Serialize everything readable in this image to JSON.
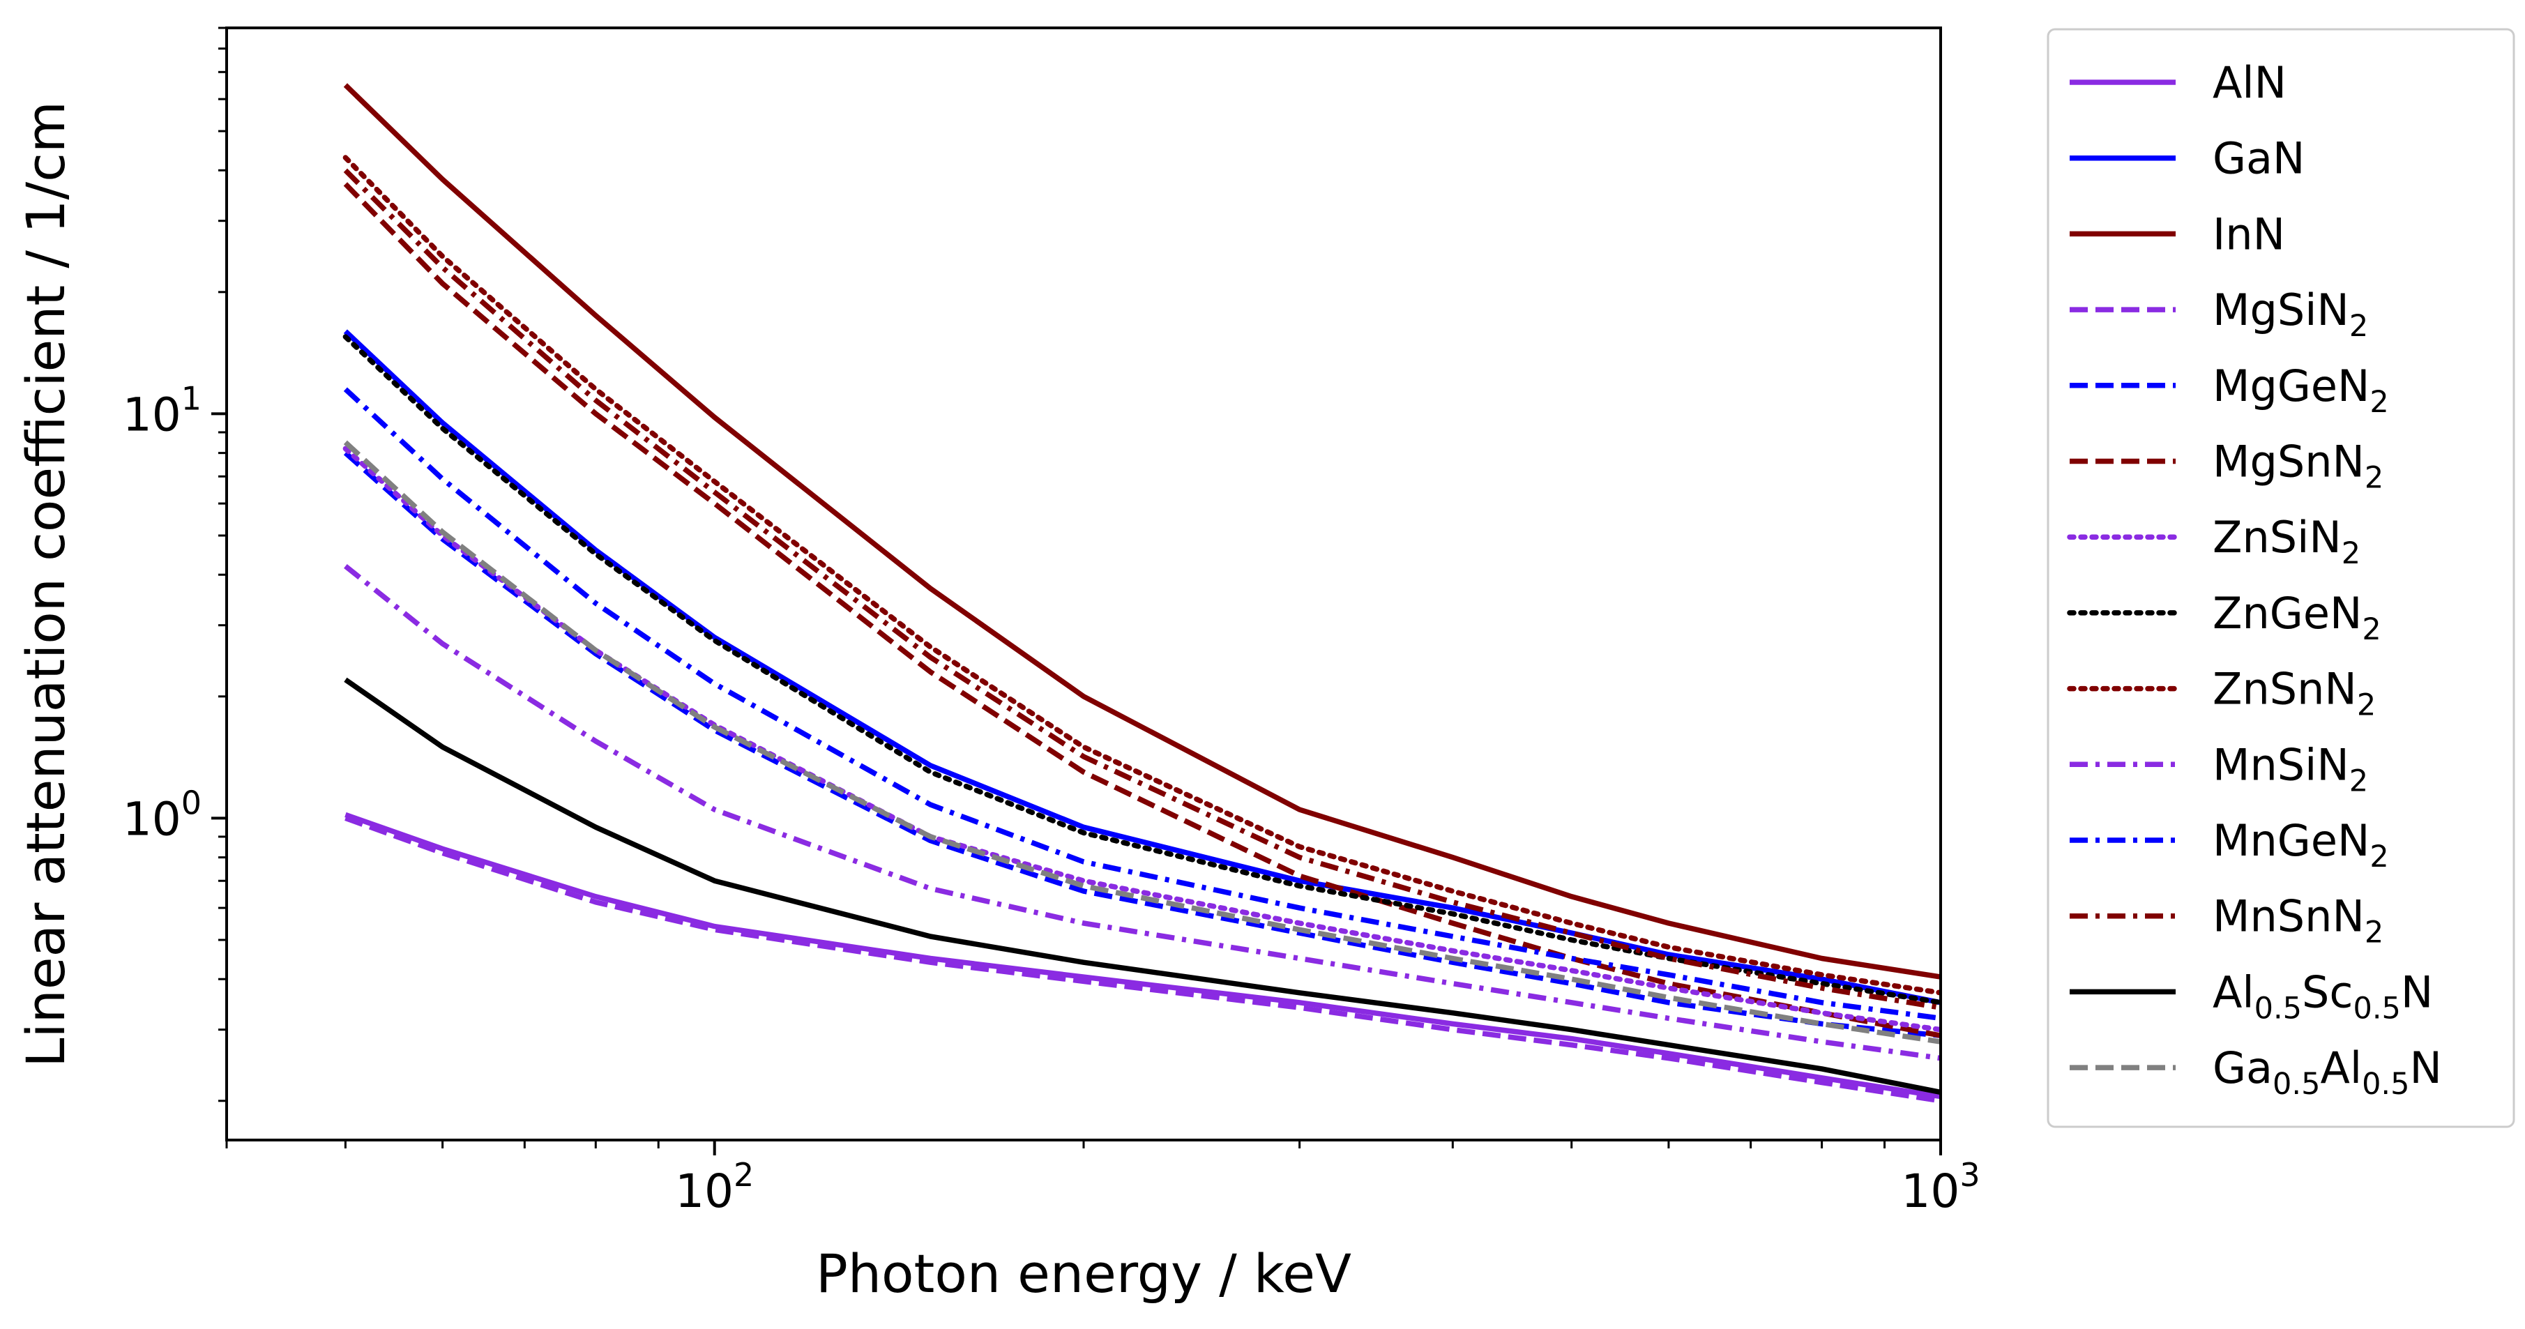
{
  "chart_data": {
    "type": "line",
    "xscale": "log",
    "yscale": "log",
    "xlim": [
      40,
      1000
    ],
    "ylim": [
      0.16,
      90
    ],
    "xlabel": "Photon energy / keV",
    "ylabel": "Linear attenuation coefficient / 1/cm",
    "x_ticks": [
      {
        "value": 100,
        "base": "10",
        "exp": "2"
      },
      {
        "value": 1000,
        "base": "10",
        "exp": "3"
      }
    ],
    "y_ticks": [
      {
        "value": 1,
        "base": "10",
        "exp": "0"
      },
      {
        "value": 10,
        "base": "10",
        "exp": "1"
      }
    ],
    "legend_position": "outside-right",
    "x": [
      50,
      60,
      80,
      100,
      150,
      200,
      300,
      400,
      500,
      600,
      800,
      1000
    ],
    "series": [
      {
        "name": "AlN",
        "parts": [
          {
            "t": "AlN"
          }
        ],
        "color": "#8a2be2",
        "style": "solid",
        "values": [
          1.02,
          0.84,
          0.64,
          0.54,
          0.45,
          0.405,
          0.35,
          0.31,
          0.285,
          0.262,
          0.228,
          0.205
        ]
      },
      {
        "name": "GaN",
        "parts": [
          {
            "t": "GaN"
          }
        ],
        "color": "#0000ff",
        "style": "solid",
        "values": [
          16.0,
          9.5,
          4.6,
          2.8,
          1.35,
          0.95,
          0.7,
          0.6,
          0.52,
          0.46,
          0.4,
          0.35
        ]
      },
      {
        "name": "InN",
        "parts": [
          {
            "t": "InN"
          }
        ],
        "color": "#800000",
        "style": "solid",
        "values": [
          65,
          38,
          17.5,
          9.8,
          3.7,
          2.0,
          1.05,
          0.8,
          0.64,
          0.55,
          0.45,
          0.405
        ]
      },
      {
        "name": "MgSiN2",
        "parts": [
          {
            "t": "MgSiN"
          },
          {
            "t": "2",
            "sub": true
          }
        ],
        "color": "#8a2be2",
        "style": "dashed",
        "values": [
          1.0,
          0.82,
          0.62,
          0.53,
          0.44,
          0.395,
          0.34,
          0.3,
          0.275,
          0.255,
          0.222,
          0.2
        ]
      },
      {
        "name": "MgGeN2",
        "parts": [
          {
            "t": "MgGeN"
          },
          {
            "t": "2",
            "sub": true
          }
        ],
        "color": "#0000ff",
        "style": "dashed",
        "values": [
          8.0,
          4.9,
          2.55,
          1.65,
          0.88,
          0.66,
          0.52,
          0.44,
          0.39,
          0.35,
          0.31,
          0.29
        ]
      },
      {
        "name": "MgSnN2",
        "parts": [
          {
            "t": "MgSnN"
          },
          {
            "t": "2",
            "sub": true
          }
        ],
        "color": "#800000",
        "style": "dashed",
        "values": [
          37,
          21,
          10,
          6.0,
          2.3,
          1.3,
          0.72,
          0.55,
          0.45,
          0.39,
          0.33,
          0.29
        ]
      },
      {
        "name": "ZnSiN2",
        "parts": [
          {
            "t": "ZnSiN"
          },
          {
            "t": "2",
            "sub": true
          }
        ],
        "color": "#8a2be2",
        "style": "dotted",
        "values": [
          8.2,
          5.0,
          2.6,
          1.7,
          0.9,
          0.7,
          0.55,
          0.47,
          0.42,
          0.38,
          0.33,
          0.3
        ]
      },
      {
        "name": "ZnGeN2",
        "parts": [
          {
            "t": "ZnGeN"
          },
          {
            "t": "2",
            "sub": true
          }
        ],
        "color": "#000000",
        "style": "dotted",
        "values": [
          15.5,
          9.2,
          4.5,
          2.75,
          1.3,
          0.92,
          0.68,
          0.58,
          0.5,
          0.45,
          0.39,
          0.35
        ]
      },
      {
        "name": "ZnSnN2",
        "parts": [
          {
            "t": "ZnSnN"
          },
          {
            "t": "2",
            "sub": true
          }
        ],
        "color": "#800000",
        "style": "dotted",
        "values": [
          43,
          24.5,
          11.5,
          6.8,
          2.65,
          1.5,
          0.85,
          0.66,
          0.55,
          0.48,
          0.41,
          0.37
        ]
      },
      {
        "name": "MnSiN2",
        "parts": [
          {
            "t": "MnSiN"
          },
          {
            "t": "2",
            "sub": true
          }
        ],
        "color": "#8a2be2",
        "style": "dashdot",
        "values": [
          4.2,
          2.7,
          1.55,
          1.05,
          0.67,
          0.55,
          0.45,
          0.39,
          0.35,
          0.32,
          0.28,
          0.255
        ]
      },
      {
        "name": "MnGeN2",
        "parts": [
          {
            "t": "MnGeN"
          },
          {
            "t": "2",
            "sub": true
          }
        ],
        "color": "#0000ff",
        "style": "dashdot",
        "values": [
          11.5,
          6.9,
          3.4,
          2.15,
          1.08,
          0.78,
          0.6,
          0.51,
          0.45,
          0.41,
          0.35,
          0.32
        ]
      },
      {
        "name": "MnSnN2",
        "parts": [
          {
            "t": "MnSnN"
          },
          {
            "t": "2",
            "sub": true
          }
        ],
        "color": "#800000",
        "style": "dashdot",
        "values": [
          40,
          23,
          10.8,
          6.4,
          2.5,
          1.42,
          0.8,
          0.62,
          0.52,
          0.45,
          0.38,
          0.34
        ]
      },
      {
        "name": "Al0.5Sc0.5N",
        "parts": [
          {
            "t": "Al"
          },
          {
            "t": "0.5",
            "sub": true
          },
          {
            "t": "Sc"
          },
          {
            "t": "0.5",
            "sub": true
          },
          {
            "t": "N"
          }
        ],
        "color": "#000000",
        "style": "solid",
        "values": [
          2.2,
          1.5,
          0.95,
          0.7,
          0.51,
          0.44,
          0.37,
          0.33,
          0.3,
          0.275,
          0.24,
          0.21
        ]
      },
      {
        "name": "Ga0.5Al0.5N",
        "parts": [
          {
            "t": "Ga"
          },
          {
            "t": "0.5",
            "sub": true
          },
          {
            "t": "Al"
          },
          {
            "t": "0.5",
            "sub": true
          },
          {
            "t": "N"
          }
        ],
        "color": "#808080",
        "style": "dashed",
        "values": [
          8.5,
          5.1,
          2.6,
          1.68,
          0.9,
          0.68,
          0.53,
          0.45,
          0.4,
          0.36,
          0.31,
          0.28
        ]
      }
    ]
  }
}
